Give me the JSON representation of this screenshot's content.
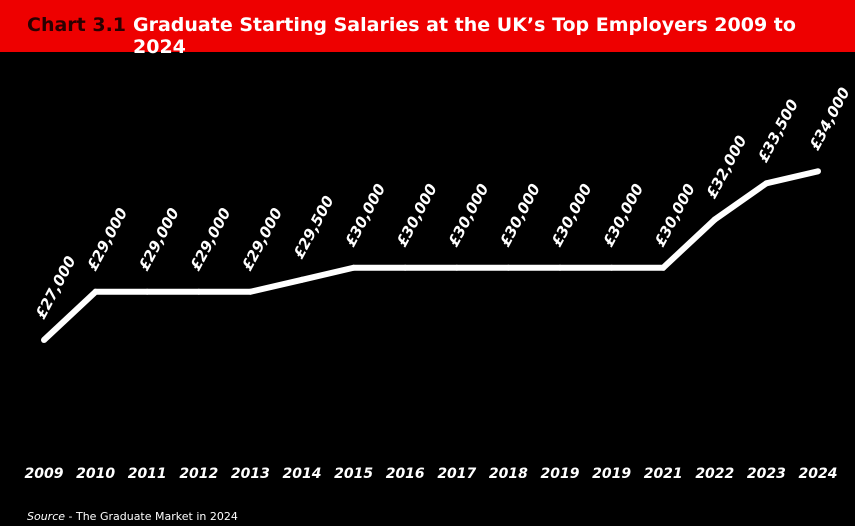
{
  "header": {
    "chart_number": "Chart 3.1",
    "title": "Graduate Starting Salaries at the UK’s Top Employers 2009 to 2024"
  },
  "source": {
    "label": "Source",
    "text": " - The Graduate Market in 2024"
  },
  "colors": {
    "title_bar": "#ee0000",
    "background": "#000000",
    "line": "#ffffff"
  },
  "chart_data": {
    "type": "line",
    "title": "Graduate Starting Salaries at the UK’s Top Employers 2009 to 2024",
    "categories": [
      "2009",
      "2010",
      "2011",
      "2012",
      "2013",
      "2014",
      "2015",
      "2016",
      "2017",
      "2018",
      "2019",
      "2019",
      "2021",
      "2022",
      "2023",
      "2024"
    ],
    "values": [
      27000,
      29000,
      29000,
      29000,
      29000,
      29500,
      30000,
      30000,
      30000,
      30000,
      30000,
      30000,
      30000,
      32000,
      33500,
      34000
    ],
    "data_labels": [
      "£27,000",
      "£29,000",
      "£29,000",
      "£29,000",
      "£29,000",
      "£29,500",
      "£30,000",
      "£30,000",
      "£30,000",
      "£30,000",
      "£30,000",
      "£30,000",
      "£30,000",
      "£32,000",
      "£33,500",
      "£34,000"
    ],
    "xlabel": "",
    "ylabel": "",
    "grid": false,
    "legend": "none"
  }
}
